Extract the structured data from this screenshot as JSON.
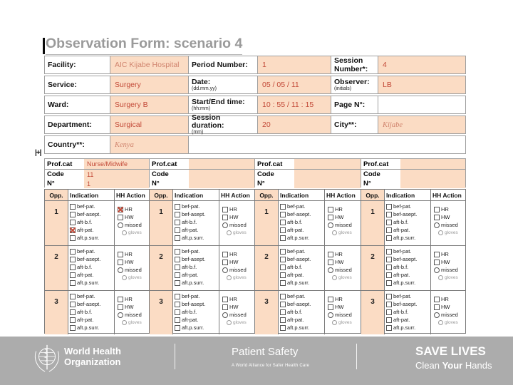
{
  "slide": {
    "title": "Observation Form: scenario 4"
  },
  "artifacts": {
    "resize_handle": "|+|"
  },
  "colors": {
    "cell_fill": "#fbdcc4",
    "ink_red": "#c34a38",
    "ink_light": "#d0846e",
    "title_gray": "#9a9a9a",
    "footer_gray": "#acacac"
  },
  "header_form": {
    "rows": [
      {
        "cells": [
          {
            "label": "Facility:",
            "sub": "",
            "value": "AIC Kijabe Hospital"
          },
          {
            "label": "Period Number:",
            "sub": "",
            "value": "1"
          },
          {
            "label": "Session Number*:",
            "sub": "",
            "value": "4"
          }
        ]
      },
      {
        "cells": [
          {
            "label": "Service:",
            "sub": "",
            "value": "Surgery"
          },
          {
            "label": "Date:",
            "sub": "(dd.mm.yy)",
            "value": "05 / 05 / 11"
          },
          {
            "label": "Observer:",
            "sub": "(initials)",
            "value": "LB"
          }
        ]
      },
      {
        "cells": [
          {
            "label": "Ward:",
            "sub": "",
            "value": "Surgery B"
          },
          {
            "label": "Start/End time:",
            "sub": "(hh:mm)",
            "value": "10 : 55 / 11 : 15"
          },
          {
            "label": "Page N°:",
            "sub": "",
            "value": ""
          }
        ]
      },
      {
        "cells": [
          {
            "label": "Department:",
            "sub": "",
            "value": "Surgical"
          },
          {
            "label": "Session duration:",
            "sub": "(mm)",
            "value": "20"
          },
          {
            "label": "City**:",
            "sub": "",
            "value": "Kijabe"
          }
        ]
      },
      {
        "cells": [
          {
            "label": "Country**:",
            "sub": "",
            "value": "Kenya"
          }
        ]
      }
    ]
  },
  "profcat": {
    "label_lines": [
      "Prof.cat",
      "Code",
      "N°"
    ],
    "groups": [
      {
        "profcat": "Nurse/Midwife",
        "code": "11",
        "n": "1"
      },
      {
        "profcat": "",
        "code": "",
        "n": ""
      },
      {
        "profcat": "",
        "code": "",
        "n": ""
      },
      {
        "profcat": "",
        "code": "",
        "n": ""
      }
    ]
  },
  "obs_grid": {
    "headers": {
      "opp": "Opp.",
      "indication": "Indication",
      "action": "HH Action"
    },
    "indications": [
      "bef-pat.",
      "bef-asept.",
      "aft-b.f.",
      "aft-pat.",
      "aft.p.surr."
    ],
    "actions": [
      "HR",
      "HW"
    ],
    "missed_label": "missed",
    "gloves_label": "gloves",
    "columns": [
      {
        "rows": [
          {
            "num": "1",
            "checked_indications": [
              3
            ],
            "checked_actions": [
              0
            ]
          },
          {
            "num": "2",
            "checked_indications": [],
            "checked_actions": []
          },
          {
            "num": "3",
            "checked_indications": [],
            "checked_actions": []
          }
        ]
      },
      {
        "rows": [
          {
            "num": "1",
            "checked_indications": [],
            "checked_actions": []
          },
          {
            "num": "2",
            "checked_indications": [],
            "checked_actions": []
          },
          {
            "num": "3",
            "checked_indications": [],
            "checked_actions": []
          }
        ]
      },
      {
        "rows": [
          {
            "num": "1",
            "checked_indications": [],
            "checked_actions": []
          },
          {
            "num": "2",
            "checked_indications": [],
            "checked_actions": []
          },
          {
            "num": "3",
            "checked_indications": [],
            "checked_actions": []
          }
        ]
      },
      {
        "rows": [
          {
            "num": "1",
            "checked_indications": [],
            "checked_actions": []
          },
          {
            "num": "2",
            "checked_indications": [],
            "checked_actions": []
          },
          {
            "num": "3",
            "checked_indications": [],
            "checked_actions": []
          }
        ]
      }
    ]
  },
  "footer": {
    "who_name_line1": "World Health",
    "who_name_line2": "Organization",
    "program": "Patient Safety",
    "program_sub": "A World Alliance for Safer Health Care",
    "campaign": "SAVE LIVES",
    "campaign_sub_1": "Clean",
    "campaign_sub_2": "Your",
    "campaign_sub_3": "Hands"
  }
}
